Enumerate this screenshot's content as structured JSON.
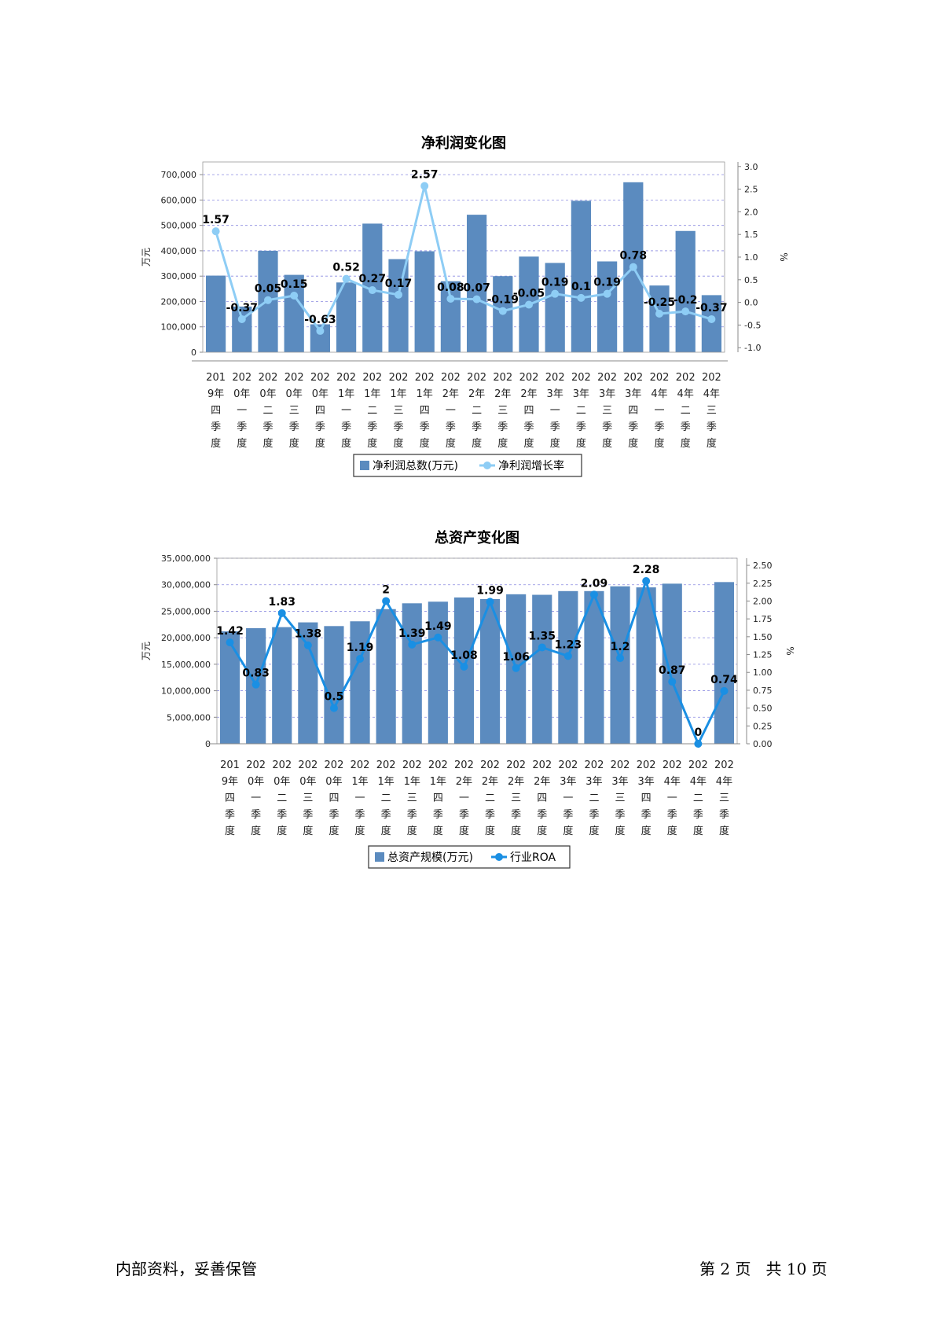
{
  "chart_data": [
    {
      "type": "bar",
      "title": "净利润变化图",
      "ylabel_left": "万元",
      "ylabel_right": "%",
      "categories": [
        "2019年四季度",
        "2020年一季度",
        "2020年二季度",
        "2020年三季度",
        "2020年四季度",
        "2021年一季度",
        "2021年二季度",
        "2021年三季度",
        "2021年四季度",
        "2022年一季度",
        "2022年二季度",
        "2022年三季度",
        "2022年四季度",
        "2023年一季度",
        "2023年二季度",
        "2023年三季度",
        "2023年四季度",
        "2024年一季度",
        "2024年二季度",
        "2024年三季度"
      ],
      "category_lines": [
        [
          "201",
          "9年",
          "四",
          "季",
          "度"
        ],
        [
          "202",
          "0年",
          "一",
          "季",
          "度"
        ],
        [
          "202",
          "0年",
          "二",
          "季",
          "度"
        ],
        [
          "202",
          "0年",
          "三",
          "季",
          "度"
        ],
        [
          "202",
          "0年",
          "四",
          "季",
          "度"
        ],
        [
          "202",
          "1年",
          "一",
          "季",
          "度"
        ],
        [
          "202",
          "1年",
          "二",
          "季",
          "度"
        ],
        [
          "202",
          "1年",
          "三",
          "季",
          "度"
        ],
        [
          "202",
          "1年",
          "四",
          "季",
          "度"
        ],
        [
          "202",
          "2年",
          "一",
          "季",
          "度"
        ],
        [
          "202",
          "2年",
          "二",
          "季",
          "度"
        ],
        [
          "202",
          "2年",
          "三",
          "季",
          "度"
        ],
        [
          "202",
          "2年",
          "四",
          "季",
          "度"
        ],
        [
          "202",
          "3年",
          "一",
          "季",
          "度"
        ],
        [
          "202",
          "3年",
          "二",
          "季",
          "度"
        ],
        [
          "202",
          "3年",
          "三",
          "季",
          "度"
        ],
        [
          "202",
          "3年",
          "四",
          "季",
          "度"
        ],
        [
          "202",
          "4年",
          "一",
          "季",
          "度"
        ],
        [
          "202",
          "4年",
          "二",
          "季",
          "度"
        ],
        [
          "202",
          "4年",
          "三",
          "季",
          "度"
        ]
      ],
      "series": [
        {
          "name": "净利润总数(万元)",
          "type": "bar",
          "axis": "left",
          "color": "#5b8bbf",
          "values": [
            302000,
            180000,
            400000,
            305000,
            110000,
            275000,
            507000,
            367000,
            398000,
            280000,
            542000,
            300000,
            377000,
            352000,
            597000,
            358000,
            670000,
            263000,
            478000,
            225000
          ]
        },
        {
          "name": "净利润增长率",
          "type": "line",
          "axis": "right",
          "color": "#8ecdf5",
          "values": [
            1.57,
            -0.37,
            0.05,
            0.15,
            -0.63,
            0.52,
            0.27,
            0.17,
            2.57,
            0.08,
            0.07,
            -0.19,
            -0.05,
            0.19,
            0.1,
            0.19,
            0.78,
            -0.25,
            -0.2,
            -0.37
          ],
          "labels": [
            "1.57",
            "-0.37",
            "0.05",
            "0.15",
            "-0.63",
            "0.52",
            "0.27",
            "0.17",
            "2.57",
            "0.08",
            "0.07",
            "-0.19",
            "-0.05",
            "0.19",
            "0.1",
            "0.19",
            "0.78",
            "-0.25",
            "-0.2",
            "-0.37"
          ]
        }
      ],
      "left_axis": {
        "min": 0,
        "max": 750000,
        "ticks": [
          0,
          100000,
          200000,
          300000,
          400000,
          500000,
          600000,
          700000
        ],
        "tick_labels": [
          "0",
          "100,000",
          "200,000",
          "300,000",
          "400,000",
          "500,000",
          "600,000",
          "700,000"
        ]
      },
      "right_axis": {
        "min": -1.1,
        "max": 3.1,
        "ticks": [
          -1.0,
          -0.5,
          0.0,
          0.5,
          1.0,
          1.5,
          2.0,
          2.5,
          3.0
        ],
        "tick_labels": [
          "-1.0",
          "-0.5",
          "0.0",
          "0.5",
          "1.0",
          "1.5",
          "2.0",
          "2.5",
          "3.0"
        ]
      },
      "grid": true,
      "legend_position": "bottom"
    },
    {
      "type": "bar",
      "title": "总资产变化图",
      "ylabel_left": "万元",
      "ylabel_right": "%",
      "categories": [
        "2019年四季度",
        "2020年一季度",
        "2020年二季度",
        "2020年三季度",
        "2020年四季度",
        "2021年一季度",
        "2021年二季度",
        "2021年三季度",
        "2021年四季度",
        "2022年一季度",
        "2022年二季度",
        "2022年三季度",
        "2022年四季度",
        "2023年一季度",
        "2023年二季度",
        "2023年三季度",
        "2023年四季度",
        "2024年一季度",
        "2024年二季度",
        "2024年三季度"
      ],
      "category_lines": [
        [
          "201",
          "9年",
          "四",
          "季",
          "度"
        ],
        [
          "202",
          "0年",
          "一",
          "季",
          "度"
        ],
        [
          "202",
          "0年",
          "二",
          "季",
          "度"
        ],
        [
          "202",
          "0年",
          "三",
          "季",
          "度"
        ],
        [
          "202",
          "0年",
          "四",
          "季",
          "度"
        ],
        [
          "202",
          "1年",
          "一",
          "季",
          "度"
        ],
        [
          "202",
          "1年",
          "二",
          "季",
          "度"
        ],
        [
          "202",
          "1年",
          "三",
          "季",
          "度"
        ],
        [
          "202",
          "1年",
          "四",
          "季",
          "度"
        ],
        [
          "202",
          "2年",
          "一",
          "季",
          "度"
        ],
        [
          "202",
          "2年",
          "二",
          "季",
          "度"
        ],
        [
          "202",
          "2年",
          "三",
          "季",
          "度"
        ],
        [
          "202",
          "2年",
          "四",
          "季",
          "度"
        ],
        [
          "202",
          "3年",
          "一",
          "季",
          "度"
        ],
        [
          "202",
          "3年",
          "二",
          "季",
          "度"
        ],
        [
          "202",
          "3年",
          "三",
          "季",
          "度"
        ],
        [
          "202",
          "3年",
          "四",
          "季",
          "度"
        ],
        [
          "202",
          "4年",
          "一",
          "季",
          "度"
        ],
        [
          "202",
          "4年",
          "二",
          "季",
          "度"
        ],
        [
          "202",
          "4年",
          "三",
          "季",
          "度"
        ]
      ],
      "series": [
        {
          "name": "总资产规模(万元)",
          "type": "bar",
          "axis": "left",
          "color": "#5b8bbf",
          "values": [
            21200000,
            21800000,
            22000000,
            22900000,
            22200000,
            23100000,
            25400000,
            26500000,
            26800000,
            27600000,
            27300000,
            28200000,
            28100000,
            28800000,
            28800000,
            29700000,
            29500000,
            30200000,
            null,
            30500000
          ]
        },
        {
          "name": "行业ROA",
          "type": "line",
          "axis": "right",
          "color": "#1a8fe3",
          "values": [
            1.42,
            0.83,
            1.83,
            1.38,
            0.5,
            1.19,
            2,
            1.39,
            1.49,
            1.08,
            1.99,
            1.06,
            1.35,
            1.23,
            2.09,
            1.2,
            2.28,
            0.87,
            0,
            0.74
          ],
          "labels": [
            "1.42",
            "0.83",
            "1.83",
            "1.38",
            "0.5",
            "1.19",
            "2",
            "1.39",
            "1.49",
            "1.08",
            "1.99",
            "1.06",
            "1.35",
            "1.23",
            "2.09",
            "1.2",
            "2.28",
            "0.87",
            "0",
            "0.74"
          ]
        }
      ],
      "left_axis": {
        "min": 0,
        "max": 35000000,
        "ticks": [
          0,
          5000000,
          10000000,
          15000000,
          20000000,
          25000000,
          30000000,
          35000000
        ],
        "tick_labels": [
          "0",
          "5,000,000",
          "10,000,000",
          "15,000,000",
          "20,000,000",
          "25,000,000",
          "30,000,000",
          "35,000,000"
        ]
      },
      "right_axis": {
        "min": 0,
        "max": 2.6,
        "ticks": [
          0,
          0.25,
          0.5,
          0.75,
          1.0,
          1.25,
          1.5,
          1.75,
          2.0,
          2.25,
          2.5
        ],
        "tick_labels": [
          "0.00",
          "0.25",
          "0.50",
          "0.75",
          "1.00",
          "1.25",
          "1.50",
          "1.75",
          "2.00",
          "2.25",
          "2.50"
        ]
      },
      "grid": true,
      "legend_position": "bottom"
    }
  ],
  "footer": {
    "left": "内部资料，妥善保管",
    "right": "第 2 页   共 10 页"
  }
}
